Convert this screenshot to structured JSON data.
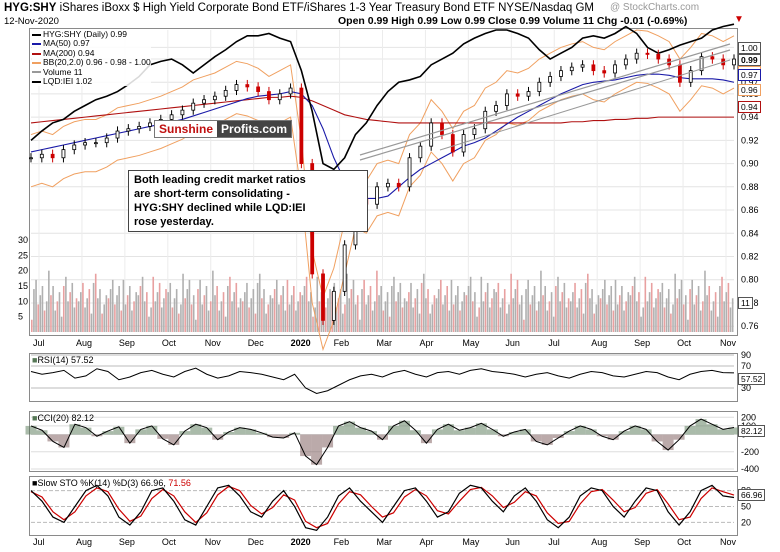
{
  "header": {
    "symbol": "HYG:SHY",
    "description": "iShares iBoxx $ High Yield Corporate Bond ETF/iShares 1-3 Year Treasury Bond ETF",
    "exchange": "NYSE/Nasdaq GM",
    "date": "12-Nov-2020",
    "ohlc": "Open 0.99  High 0.99  Low 0.99  Close 0.99  Volume 11  Chg -0.01 (-0.69%)",
    "watermark": "@ StockCharts.com"
  },
  "legend": {
    "items": [
      {
        "text": "HYG:SHY (Daily) 0.99",
        "color": "#000000"
      },
      {
        "text": "MA(50) 0.97",
        "color": "#1a1aa8"
      },
      {
        "text": "MA(200) 0.94",
        "color": "#b01010"
      },
      {
        "text": "BB(20,2.0) 0.96 - 0.98 - 1.00",
        "color": "#f0a060"
      },
      {
        "text": "Volume 11",
        "color": "#999999"
      },
      {
        "text": "LQD:IEI 1.02",
        "color": "#000000"
      }
    ]
  },
  "branding": {
    "part1": "Sunshine",
    "part2": "Profits.com"
  },
  "annotation": "Both leading credit market ratios\nare short-term consolidating -\nHYG:SHY declined while LQD:IEI\nrose yesterday.",
  "price_tags": {
    "t1": "1.00",
    "t2": "0.99",
    "t3": "0.97",
    "t4": "0.96",
    "t5": "0.94",
    "vol": "11"
  },
  "indicator_titles": {
    "rsi": "RSI(14) 57.52",
    "cci": "CCI(20) 82.12",
    "sto_a": "Slow STO %K(14) %D(3) 66.96,",
    "sto_b": "71.56"
  },
  "indicator_tags": {
    "rsi": "57.52",
    "cci": "82.12",
    "sto": "66.96"
  },
  "colors": {
    "price": "#000000",
    "ma50": "#1a1aa8",
    "ma200": "#b01010",
    "bb": "#f0a060",
    "up": "#000000",
    "down": "#cc0000",
    "vol": "#b0b0b0",
    "volDown": "#e8a0a0",
    "k": "#000000",
    "d": "#cc0000",
    "ciUp": "#557755",
    "ciDn": "#775555"
  },
  "chart_data": [
    {
      "type": "line",
      "title": "HYG:SHY",
      "x_ticks": [
        "Jul",
        "Aug",
        "Sep",
        "Oct",
        "Nov",
        "Dec",
        "2020",
        "Feb",
        "Mar",
        "Apr",
        "May",
        "Jun",
        "Jul",
        "Aug",
        "Sep",
        "Oct",
        "Nov"
      ],
      "ylim": [
        0.755,
        1.015
      ],
      "y_ticks": [
        0.76,
        0.78,
        0.8,
        0.82,
        0.84,
        0.86,
        0.88,
        0.9,
        0.92,
        0.94,
        0.96,
        0.97,
        0.99,
        1.0
      ],
      "series": [
        {
          "name": "HYG:SHY (Daily)",
          "values": [
            0.905,
            0.908,
            0.905,
            0.912,
            0.916,
            0.918,
            0.918,
            0.922,
            0.928,
            0.93,
            0.932,
            0.935,
            0.938,
            0.942,
            0.946,
            0.952,
            0.955,
            0.958,
            0.963,
            0.968,
            0.966,
            0.962,
            0.955,
            0.96,
            0.965,
            0.9,
            0.805,
            0.765,
            0.79,
            0.83,
            0.87,
            0.865,
            0.88,
            0.883,
            0.88,
            0.905,
            0.915,
            0.935,
            0.925,
            0.91,
            0.925,
            0.93,
            0.945,
            0.95,
            0.96,
            0.958,
            0.962,
            0.97,
            0.975,
            0.98,
            0.983,
            0.985,
            0.98,
            0.978,
            0.985,
            0.99,
            0.995,
            0.994,
            0.99,
            0.985,
            0.97,
            0.98,
            0.992,
            0.99,
            0.985,
            0.99
          ]
        },
        {
          "name": "MA(50)",
          "values": [
            0.91,
            0.912,
            0.914,
            0.916,
            0.918,
            0.92,
            0.922,
            0.924,
            0.926,
            0.928,
            0.93,
            0.932,
            0.934,
            0.936,
            0.938,
            0.941,
            0.944,
            0.947,
            0.95,
            0.953,
            0.956,
            0.958,
            0.959,
            0.96,
            0.962,
            0.96,
            0.95,
            0.93,
            0.905,
            0.885,
            0.875,
            0.87,
            0.87,
            0.872,
            0.88,
            0.888,
            0.895,
            0.9,
            0.905,
            0.91,
            0.915,
            0.918,
            0.922,
            0.928,
            0.934,
            0.94,
            0.945,
            0.95,
            0.955,
            0.96,
            0.964,
            0.968,
            0.97,
            0.971,
            0.972,
            0.974,
            0.976,
            0.977,
            0.977,
            0.976,
            0.974,
            0.973,
            0.973,
            0.973,
            0.972,
            0.97
          ]
        },
        {
          "name": "MA(200)",
          "values": [
            0.935,
            0.936,
            0.937,
            0.938,
            0.939,
            0.94,
            0.941,
            0.942,
            0.943,
            0.944,
            0.945,
            0.946,
            0.947,
            0.948,
            0.949,
            0.95,
            0.951,
            0.952,
            0.953,
            0.954,
            0.955,
            0.956,
            0.957,
            0.957,
            0.958,
            0.957,
            0.954,
            0.95,
            0.946,
            0.942,
            0.94,
            0.938,
            0.937,
            0.936,
            0.935,
            0.935,
            0.935,
            0.935,
            0.935,
            0.935,
            0.935,
            0.935,
            0.935,
            0.935,
            0.935,
            0.935,
            0.935,
            0.935,
            0.935,
            0.935,
            0.936,
            0.936,
            0.937,
            0.937,
            0.938,
            0.938,
            0.939,
            0.939,
            0.94,
            0.94,
            0.94,
            0.94,
            0.94,
            0.94,
            0.94,
            0.94
          ]
        },
        {
          "name": "LQD:IEI",
          "values": [
            0.92,
            0.928,
            0.935,
            0.938,
            0.945,
            0.95,
            0.955,
            0.958,
            0.962,
            0.968,
            0.975,
            0.985,
            0.988,
            0.99,
            0.985,
            0.978,
            0.985,
            0.992,
            0.998,
            1.005,
            1.01,
            1.01,
            1.012,
            1.008,
            1.005,
            0.98,
            0.945,
            0.9,
            0.895,
            0.905,
            0.925,
            0.935,
            0.95,
            0.962,
            0.97,
            0.972,
            0.975,
            0.985,
            0.99,
            0.995,
            1.003,
            1.008,
            1.012,
            1.015,
            1.015,
            1.012,
            1.008,
            0.998,
            0.99,
            0.995,
            1.0,
            1.008,
            1.01,
            1.008,
            1.012,
            1.018,
            1.012,
            1.0,
            0.995,
            0.998,
            1.002,
            1.005,
            1.008,
            1.015,
            1.018,
            1.02
          ]
        }
      ]
    },
    {
      "type": "bar",
      "title": "Volume",
      "ylim": [
        0,
        30
      ],
      "y_ticks": [
        5,
        10,
        15,
        20,
        25,
        30
      ]
    },
    {
      "type": "line",
      "title": "RSI(14)",
      "ylim": [
        10,
        90
      ],
      "y_ticks": [
        30,
        70,
        90
      ],
      "values": [
        60,
        55,
        58,
        62,
        48,
        52,
        65,
        60,
        45,
        50,
        58,
        62,
        55,
        50,
        60,
        66,
        55,
        48,
        52,
        60,
        58,
        55,
        50,
        45,
        55,
        30,
        20,
        25,
        35,
        45,
        52,
        55,
        50,
        58,
        62,
        55,
        50,
        58,
        60,
        55,
        62,
        65,
        60,
        58,
        55,
        50,
        55,
        58,
        52,
        48,
        55,
        60,
        58,
        52,
        50,
        55,
        60,
        58,
        50,
        45,
        55,
        60,
        62,
        58,
        57.52
      ]
    },
    {
      "type": "line",
      "title": "CCI(20)",
      "ylim": [
        -400,
        250
      ],
      "y_ticks": [
        -400,
        -200,
        0,
        100,
        200
      ],
      "values": [
        100,
        50,
        -80,
        -150,
        120,
        80,
        -20,
        40,
        90,
        -100,
        60,
        100,
        -50,
        -120,
        40,
        120,
        80,
        -60,
        30,
        80,
        60,
        20,
        -30,
        -40,
        20,
        -250,
        -350,
        -150,
        100,
        150,
        80,
        40,
        -60,
        100,
        160,
        50,
        -100,
        60,
        120,
        50,
        80,
        130,
        60,
        -20,
        30,
        60,
        -80,
        -120,
        -40,
        40,
        100,
        60,
        -20,
        -60,
        40,
        100,
        60,
        -80,
        -180,
        -60,
        100,
        180,
        120,
        60,
        82.12
      ]
    },
    {
      "type": "line",
      "title": "Slow STO %K(14) %D(3)",
      "ylim": [
        0,
        100
      ],
      "y_ticks": [
        20,
        50,
        80
      ],
      "series": [
        {
          "name": "%K",
          "values": [
            80,
            60,
            30,
            20,
            50,
            80,
            90,
            70,
            30,
            15,
            40,
            80,
            85,
            60,
            25,
            15,
            50,
            85,
            90,
            70,
            40,
            30,
            60,
            80,
            50,
            10,
            5,
            30,
            70,
            85,
            60,
            40,
            20,
            50,
            80,
            85,
            60,
            30,
            40,
            75,
            90,
            85,
            60,
            40,
            70,
            85,
            60,
            25,
            10,
            30,
            70,
            85,
            80,
            50,
            30,
            60,
            85,
            80,
            40,
            15,
            40,
            80,
            90,
            70,
            66.96
          ]
        },
        {
          "name": "%D",
          "values": [
            78,
            68,
            40,
            25,
            40,
            70,
            85,
            78,
            45,
            22,
            32,
            65,
            82,
            70,
            40,
            20,
            38,
            72,
            88,
            80,
            52,
            36,
            48,
            72,
            62,
            22,
            10,
            18,
            55,
            78,
            72,
            50,
            30,
            38,
            68,
            82,
            70,
            42,
            36,
            60,
            82,
            86,
            70,
            48,
            58,
            78,
            70,
            38,
            18,
            22,
            55,
            78,
            82,
            62,
            40,
            48,
            75,
            82,
            55,
            25,
            30,
            65,
            85,
            78,
            71.56
          ]
        }
      ]
    }
  ]
}
